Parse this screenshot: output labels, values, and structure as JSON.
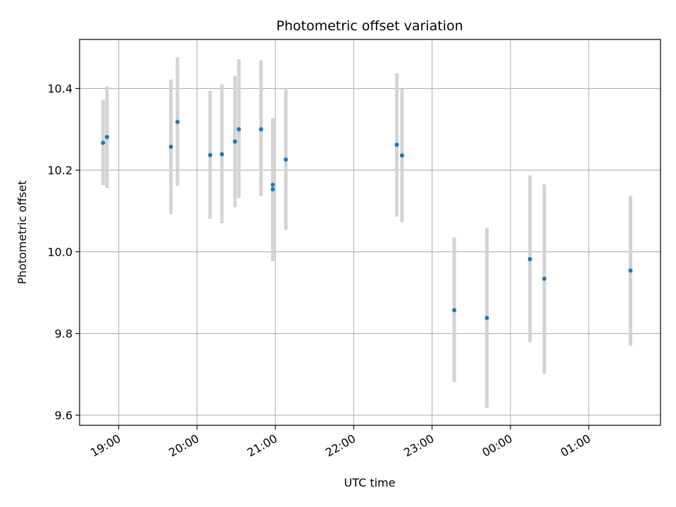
{
  "chart_data": {
    "type": "scatter",
    "title": "Photometric offset variation",
    "xlabel": "UTC time",
    "ylabel": "Photometric offset",
    "x_ticks": [
      "19:00",
      "20:00",
      "21:00",
      "22:00",
      "23:00",
      "00:00",
      "01:00"
    ],
    "y_ticks": [
      "9.6",
      "9.8",
      "10.0",
      "10.2",
      "10.4"
    ],
    "xlim": [
      "18:30",
      "25:55"
    ],
    "ylim": [
      9.575,
      10.52
    ],
    "grid": true,
    "colors": {
      "point": "#1f77b4",
      "errorbar": "#d3d3d3",
      "grid": "#b0b0b0"
    },
    "series": [
      {
        "points": [
          {
            "x": "18:48",
            "y": 10.267,
            "ylow": 10.163,
            "yhigh": 10.372
          },
          {
            "x": "18:51",
            "y": 10.281,
            "ylow": 10.156,
            "yhigh": 10.405
          },
          {
            "x": "19:40",
            "y": 10.257,
            "ylow": 10.092,
            "yhigh": 10.422
          },
          {
            "x": "19:45",
            "y": 10.318,
            "ylow": 10.161,
            "yhigh": 10.476
          },
          {
            "x": "20:10",
            "y": 10.237,
            "ylow": 10.081,
            "yhigh": 10.394
          },
          {
            "x": "20:19",
            "y": 10.239,
            "ylow": 10.07,
            "yhigh": 10.41
          },
          {
            "x": "20:29",
            "y": 10.27,
            "ylow": 10.109,
            "yhigh": 10.431
          },
          {
            "x": "20:32",
            "y": 10.3,
            "ylow": 10.132,
            "yhigh": 10.472
          },
          {
            "x": "20:49",
            "y": 10.3,
            "ylow": 10.137,
            "yhigh": 10.469
          },
          {
            "x": "20:58",
            "y": 10.153,
            "ylow": 9.977,
            "yhigh": 10.327
          },
          {
            "x": "20:58",
            "y": 10.164,
            "ylow": 9.998,
            "yhigh": 10.327
          },
          {
            "x": "21:08",
            "y": 10.226,
            "ylow": 10.054,
            "yhigh": 10.398
          },
          {
            "x": "22:33",
            "y": 10.262,
            "ylow": 10.086,
            "yhigh": 10.437
          },
          {
            "x": "22:37",
            "y": 10.236,
            "ylow": 10.073,
            "yhigh": 10.399
          },
          {
            "x": "23:17",
            "y": 9.857,
            "ylow": 9.681,
            "yhigh": 10.035
          },
          {
            "x": "23:42",
            "y": 9.838,
            "ylow": 9.618,
            "yhigh": 10.058
          },
          {
            "x": "24:15",
            "y": 9.982,
            "ylow": 9.779,
            "yhigh": 10.187
          },
          {
            "x": "24:26",
            "y": 9.934,
            "ylow": 9.701,
            "yhigh": 10.165
          },
          {
            "x": "25:32",
            "y": 9.954,
            "ylow": 9.77,
            "yhigh": 10.137
          }
        ]
      }
    ]
  }
}
